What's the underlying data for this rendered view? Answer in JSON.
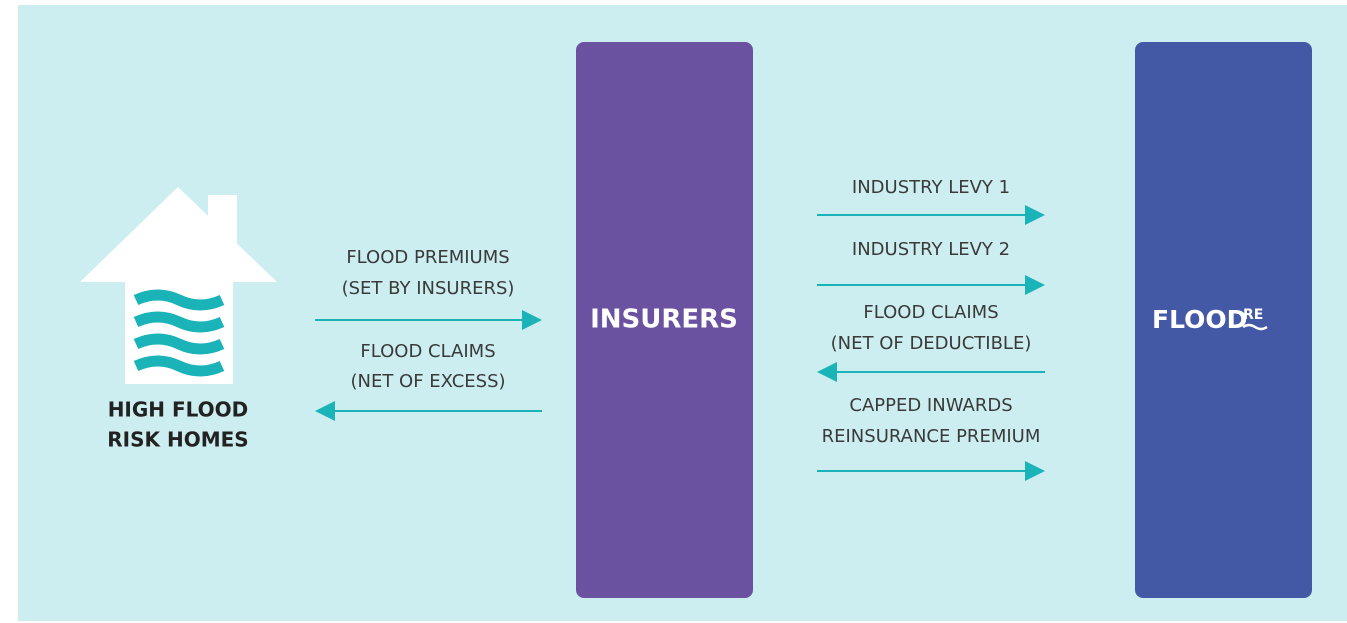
{
  "nodes": [
    {
      "label": [
        "HIGH FLOOD",
        "RISK HOMES"
      ]
    },
    {
      "label": "INSURERS"
    },
    {
      "label": "FLOOD",
      "logo_suffix": "RE"
    }
  ],
  "flows": [
    {
      "label": [
        "FLOOD PREMIUMS",
        "(SET BY INSURERS)"
      ]
    },
    {
      "label": [
        "FLOOD CLAIMS",
        "(NET OF EXCESS)"
      ]
    },
    {
      "label": [
        "INDUSTRY LEVY 1"
      ]
    },
    {
      "label": [
        "INDUSTRY LEVY 2"
      ]
    },
    {
      "label": [
        "FLOOD CLAIMS",
        "(NET OF DEDUCTIBLE)"
      ]
    },
    {
      "label": [
        "CAPPED INWARDS",
        "REINSURANCE PREMIUM"
      ]
    }
  ]
}
